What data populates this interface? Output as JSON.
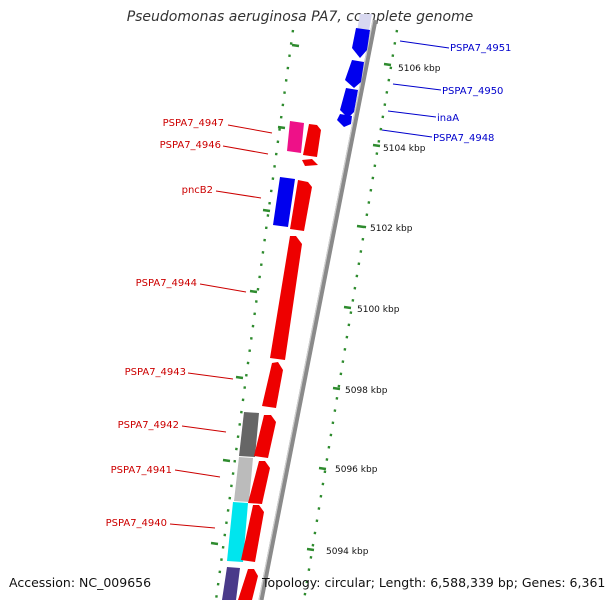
{
  "title": "Pseudomonas aeruginosa PA7, complete genome",
  "footer": {
    "accession": "Accession: NC_009656",
    "topology": "Topology: circular; Length: 6,588,339 bp; Genes: 6,361"
  },
  "colors": {
    "backbone": "#8a8a8a",
    "tick": "#2e8b2e",
    "forward_label": "#0000cc",
    "reverse_label": "#cc0000"
  },
  "scale_labels": [
    "5106 kbp",
    "5104 kbp",
    "5102 kbp",
    "5100 kbp",
    "5098 kbp",
    "5096 kbp",
    "5094 kbp"
  ],
  "forward_genes": [
    {
      "label": "PSPA7_4951",
      "color": "#0000ee",
      "icon": "arrow-icon"
    },
    {
      "label": "PSPA7_4950",
      "color": "#0000ee",
      "icon": "arrow-icon"
    },
    {
      "label": "inaA",
      "color": "#0000ee",
      "icon": "arrow-icon"
    },
    {
      "label": "PSPA7_4948",
      "color": "#0000ee",
      "icon": "arrow-icon"
    }
  ],
  "reverse_genes": [
    {
      "label": "PSPA7_4947",
      "color": "#ee1188",
      "icon": "arrow-icon"
    },
    {
      "label": "PSPA7_4946",
      "color": "#ee0000",
      "icon": "arrow-icon"
    },
    {
      "label": "pncB2",
      "color": "#0000ee",
      "icon": "arrow-icon"
    },
    {
      "label": "PSPA7_4944",
      "color": "#ee0000",
      "icon": "arrow-icon"
    },
    {
      "label": "PSPA7_4943",
      "color": "#ee0000",
      "icon": "arrow-icon"
    },
    {
      "label": "PSPA7_4942",
      "color": "#666666",
      "icon": "arrow-icon"
    },
    {
      "label": "PSPA7_4941",
      "color": "#bbbbbb",
      "icon": "arrow-icon"
    },
    {
      "label": "PSPA7_4940",
      "color": "#00e5ee",
      "icon": "arrow-icon"
    }
  ]
}
